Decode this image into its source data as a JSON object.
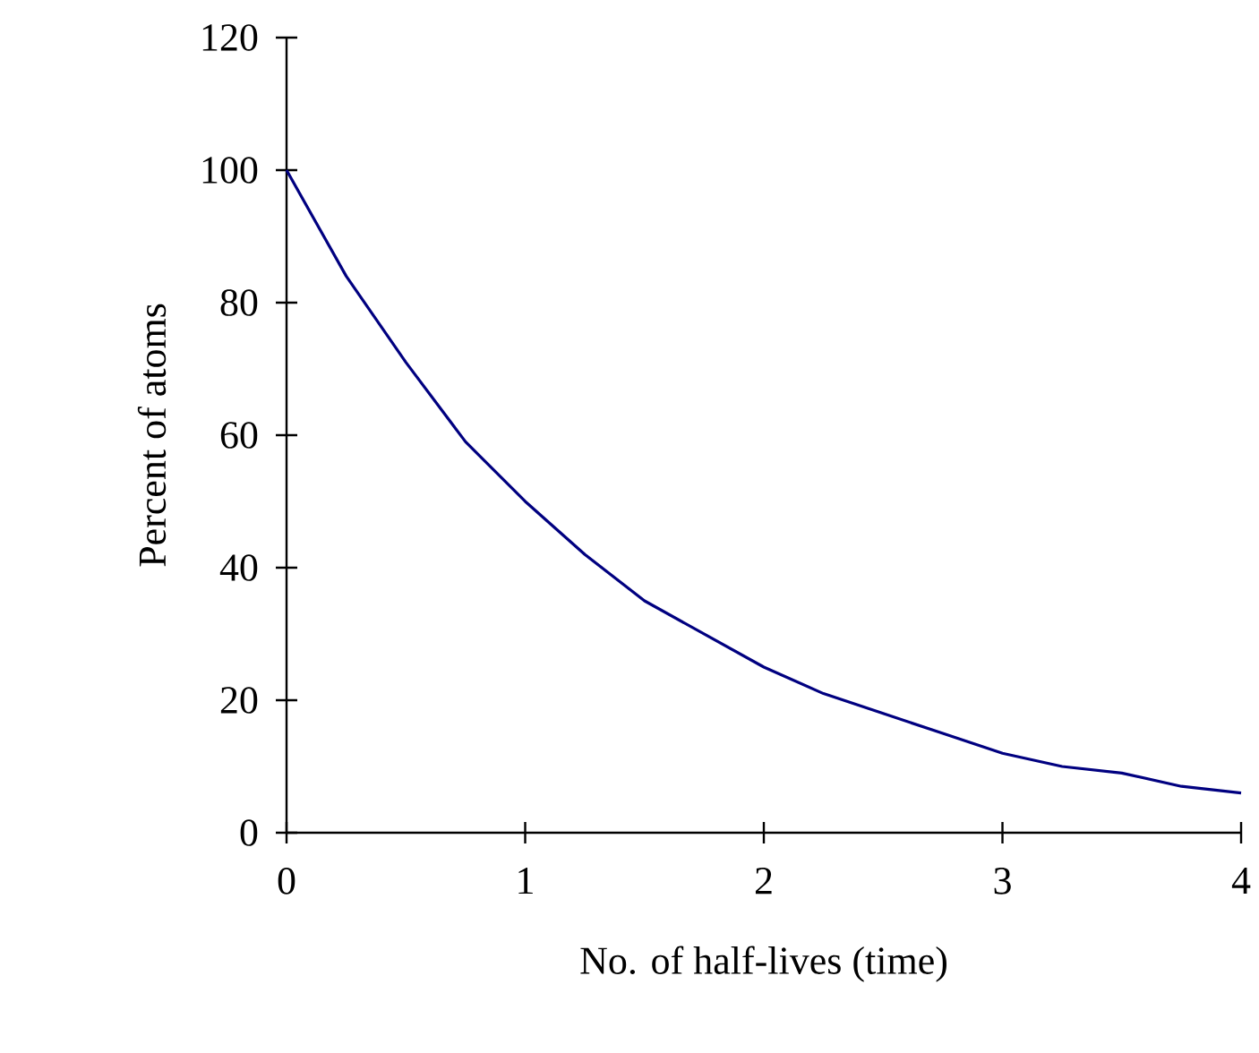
{
  "chart_data": {
    "type": "line",
    "xlabel": "No. of half-lives (time)",
    "ylabel": "Percent of atoms",
    "x": [
      0,
      0.25,
      0.5,
      0.75,
      1,
      1.25,
      1.5,
      1.75,
      2,
      2.25,
      2.5,
      2.75,
      3,
      3.25,
      3.5,
      3.75,
      4
    ],
    "series": [
      {
        "color": "#000080",
        "values": [
          100,
          84,
          71,
          59,
          50,
          42,
          35,
          30,
          25,
          21,
          18,
          15,
          12,
          10,
          9,
          7,
          6
        ]
      }
    ],
    "xlim": [
      0,
      4
    ],
    "ylim": [
      0,
      120
    ],
    "xticks": [
      0,
      1,
      2,
      3,
      4
    ],
    "yticks": [
      0,
      20,
      40,
      60,
      80,
      100,
      120
    ],
    "marker": "none",
    "line_style": "solid"
  }
}
